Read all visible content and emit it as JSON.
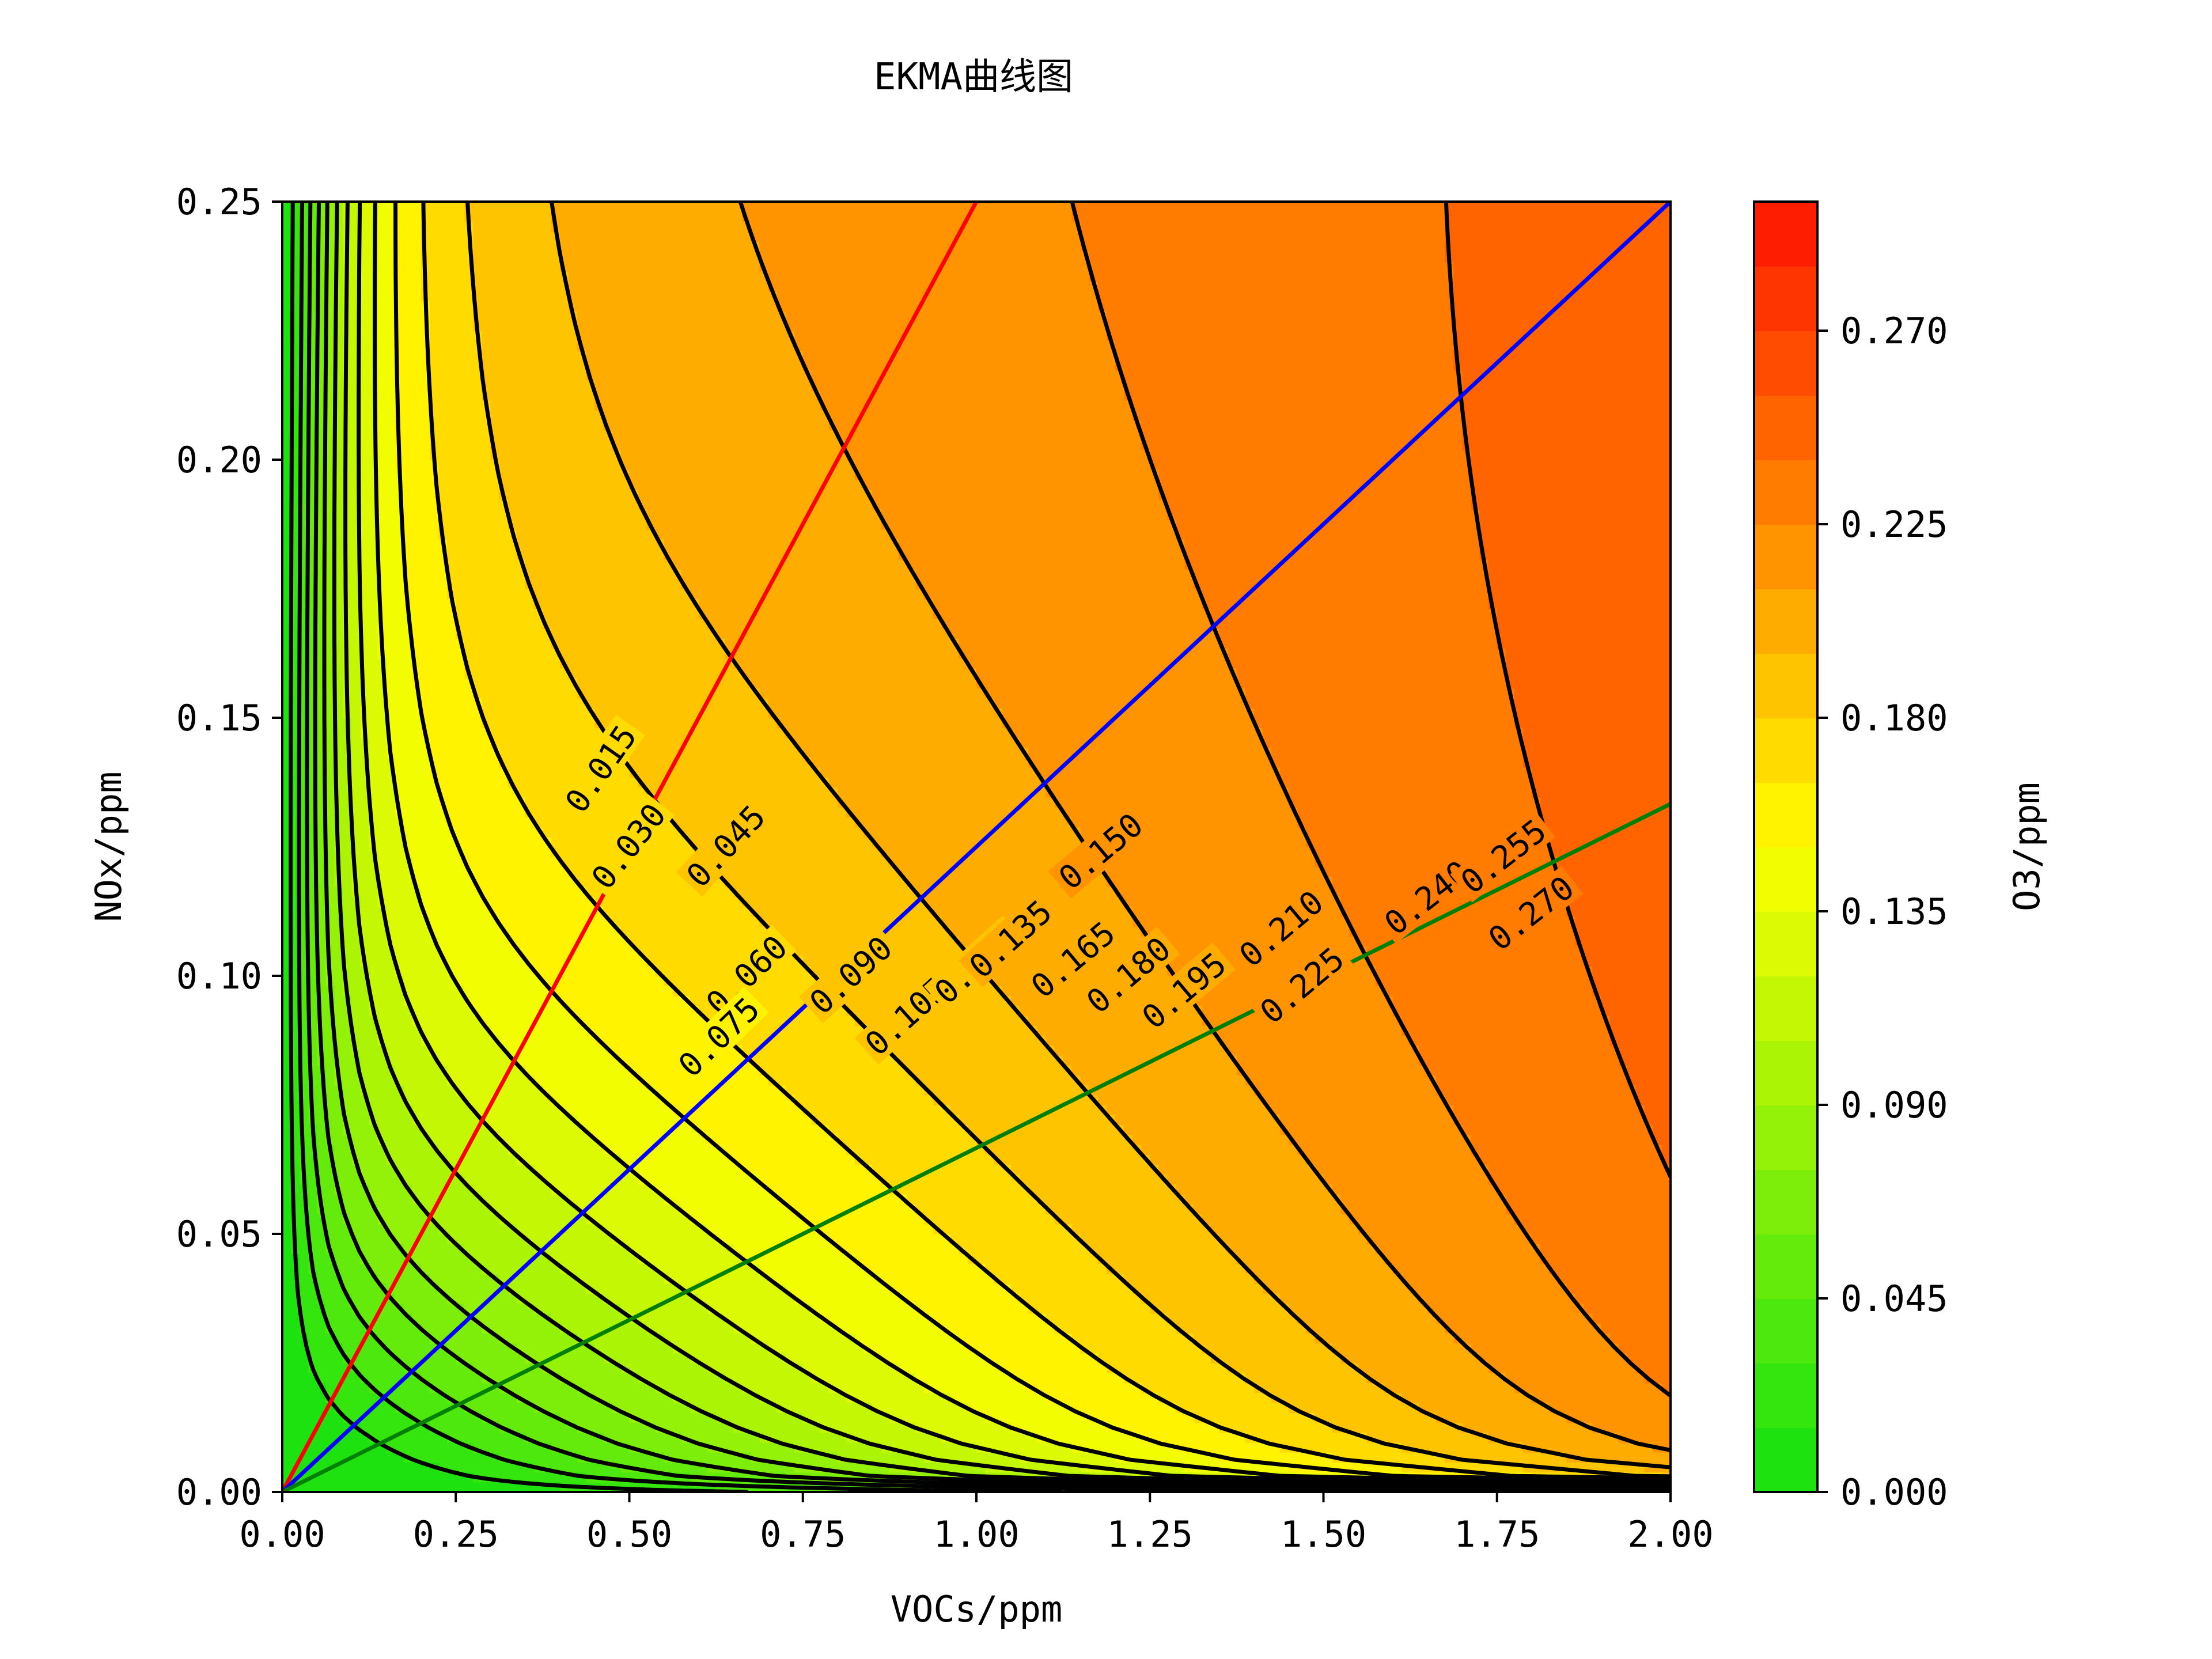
{
  "chart_data": {
    "type": "contour",
    "title": "EKMA曲线图",
    "xlabel": "VOCs/ppm",
    "ylabel": "NOx/ppm",
    "colorbar_label": "O3/ppm",
    "xlim": [
      0,
      2.0
    ],
    "ylim": [
      0,
      0.25
    ],
    "x_ticks": [
      "0.00",
      "0.25",
      "0.50",
      "0.75",
      "1.00",
      "1.25",
      "1.50",
      "1.75",
      "2.00"
    ],
    "y_ticks": [
      "0.00",
      "0.05",
      "0.10",
      "0.15",
      "0.20",
      "0.25"
    ],
    "colorbar_lim": [
      0,
      0.3
    ],
    "colorbar_ticks": [
      "0.000",
      "0.045",
      "0.090",
      "0.135",
      "0.180",
      "0.225",
      "0.270"
    ],
    "colormap": [
      "#11e011",
      "#ffff00",
      "#ff1100"
    ],
    "contour_levels": [
      0.015,
      0.03,
      0.045,
      0.06,
      0.075,
      0.09,
      0.105,
      0.12,
      0.135,
      0.15,
      0.165,
      0.18,
      0.195,
      0.21,
      0.225,
      0.24,
      0.255,
      0.27,
      0.285
    ],
    "contour_labels": [
      {
        "text": "0.015",
        "x": 0.46,
        "y": 0.14,
        "angle": -55
      },
      {
        "text": "0.030",
        "x": 0.5,
        "y": 0.125,
        "angle": -52
      },
      {
        "text": "0.045",
        "x": 0.64,
        "y": 0.125,
        "angle": -47
      },
      {
        "text": "0.060",
        "x": 0.67,
        "y": 0.1,
        "angle": -44
      },
      {
        "text": "0.075",
        "x": 0.63,
        "y": 0.088,
        "angle": -44
      },
      {
        "text": "0.090",
        "x": 0.82,
        "y": 0.1,
        "angle": -42
      },
      {
        "text": "0.105",
        "x": 0.9,
        "y": 0.092,
        "angle": -42
      },
      {
        "text": "0.120",
        "x": 1.0,
        "y": 0.102,
        "angle": -42
      },
      {
        "text": "0.135",
        "x": 1.05,
        "y": 0.107,
        "angle": -42
      },
      {
        "text": "0.150",
        "x": 1.18,
        "y": 0.124,
        "angle": -40
      },
      {
        "text": "0.165",
        "x": 1.14,
        "y": 0.103,
        "angle": -40
      },
      {
        "text": "0.180",
        "x": 1.22,
        "y": 0.1,
        "angle": -40
      },
      {
        "text": "0.195",
        "x": 1.3,
        "y": 0.097,
        "angle": -40
      },
      {
        "text": "0.210",
        "x": 1.44,
        "y": 0.109,
        "angle": -40
      },
      {
        "text": "0.225",
        "x": 1.47,
        "y": 0.098,
        "angle": -40
      },
      {
        "text": "0.240",
        "x": 1.65,
        "y": 0.115,
        "angle": -38
      },
      {
        "text": "0.255",
        "x": 1.76,
        "y": 0.123,
        "angle": -38
      },
      {
        "text": "0.270",
        "x": 1.8,
        "y": 0.112,
        "angle": -38
      }
    ],
    "series": [
      {
        "color": "#ff0000",
        "points": [
          [
            0,
            0
          ],
          [
            1.0,
            0.25
          ]
        ]
      },
      {
        "color": "#0000ff",
        "points": [
          [
            0,
            0
          ],
          [
            2.0,
            0.25
          ]
        ]
      },
      {
        "color": "#007f00",
        "points": [
          [
            0,
            0
          ],
          [
            2.0,
            0.1333
          ]
        ]
      }
    ],
    "grid": false,
    "legend": "none"
  }
}
